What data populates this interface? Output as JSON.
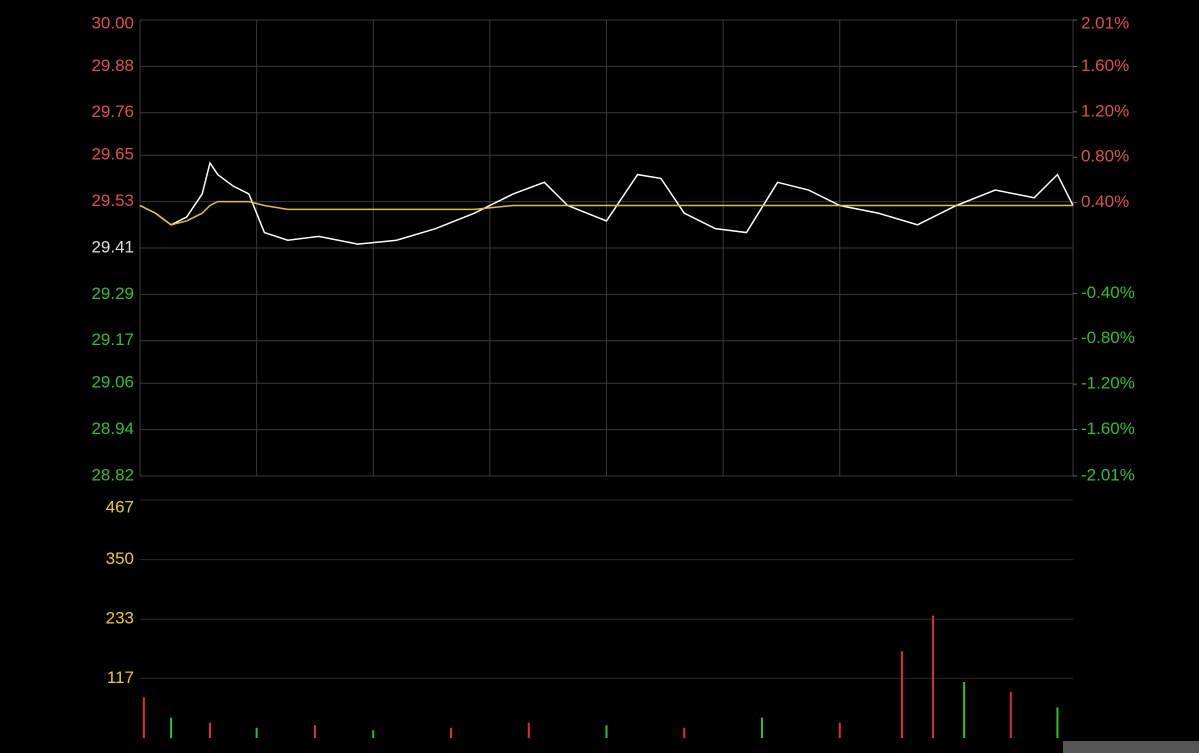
{
  "chart_data": [
    {
      "type": "line",
      "x": [
        0,
        4,
        8,
        12,
        16,
        18,
        20,
        24,
        28,
        32,
        38,
        46,
        56,
        66,
        76,
        86,
        96,
        104,
        110,
        120,
        128,
        134,
        140,
        148,
        156,
        164,
        172,
        180,
        190,
        200,
        210,
        220,
        230,
        236,
        240
      ],
      "xlim": [
        0,
        240
      ],
      "series": [
        {
          "color": "#ffffff",
          "values": [
            29.52,
            29.5,
            29.47,
            29.49,
            29.55,
            29.63,
            29.6,
            29.57,
            29.55,
            29.45,
            29.43,
            29.44,
            29.42,
            29.43,
            29.46,
            29.5,
            29.55,
            29.58,
            29.52,
            29.48,
            29.6,
            29.59,
            29.5,
            29.46,
            29.45,
            29.58,
            29.56,
            29.52,
            29.5,
            29.47,
            29.52,
            29.56,
            29.54,
            29.6,
            29.52
          ]
        },
        {
          "color": "#e8c020",
          "values": [
            29.52,
            29.5,
            29.47,
            29.48,
            29.5,
            29.52,
            29.53,
            29.53,
            29.53,
            29.52,
            29.51,
            29.51,
            29.51,
            29.51,
            29.51,
            29.51,
            29.52,
            29.52,
            29.52,
            29.52,
            29.52,
            29.52,
            29.52,
            29.52,
            29.52,
            29.52,
            29.52,
            29.52,
            29.52,
            29.52,
            29.52,
            29.52,
            29.52,
            29.52,
            29.52
          ]
        }
      ],
      "ylim": [
        28.82,
        30.0
      ],
      "yticks": [
        {
          "value": 30.0,
          "label": "30.00"
        },
        29.88,
        29.76,
        29.65,
        29.53,
        29.41,
        29.29,
        29.17,
        29.06,
        28.94,
        28.82
      ],
      "y2lim": [
        -2.01,
        2.01
      ],
      "y2ticks": [
        {
          "value": 2.01,
          "label": "2.01%"
        },
        {
          "value": 1.6,
          "label": "1.60%"
        },
        {
          "value": 1.2,
          "label": "1.20%"
        },
        {
          "value": 0.8,
          "label": "0.80%"
        },
        {
          "value": 0.4,
          "label": "0.40%"
        },
        {
          "value": -0.4,
          "label": "-0.40%"
        },
        {
          "value": -0.8,
          "label": "-0.80%"
        },
        {
          "value": -1.2,
          "label": "-1.20%"
        },
        {
          "value": -1.6,
          "label": "-1.60%"
        },
        {
          "value": -2.01,
          "label": "-2.01%"
        }
      ],
      "grid": true
    },
    {
      "type": "bar",
      "x": [
        1,
        8,
        18,
        30,
        45,
        60,
        80,
        100,
        120,
        140,
        160,
        180,
        196,
        204,
        212,
        224,
        236
      ],
      "xlim": [
        0,
        240
      ],
      "values": [
        80,
        40,
        30,
        20,
        25,
        15,
        20,
        30,
        25,
        20,
        40,
        30,
        170,
        240,
        110,
        90,
        60
      ],
      "colors": [
        "#e03030",
        "#30c030",
        "#e03030",
        "#30c030",
        "#e03030",
        "#30c030",
        "#e03030",
        "#e03030",
        "#30c030",
        "#e03030",
        "#30c030",
        "#e03030",
        "#e03030",
        "#e03030",
        "#30c030",
        "#e03030",
        "#30c030"
      ],
      "ylim": [
        0,
        467
      ],
      "yticks": [
        117,
        233,
        350,
        467
      ]
    }
  ]
}
